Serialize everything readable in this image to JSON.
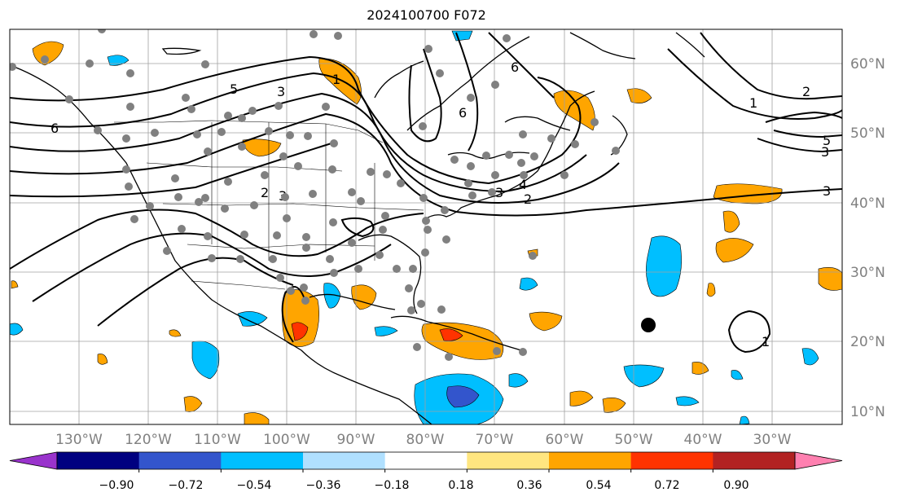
{
  "title": "2024100700 F072",
  "map": {
    "latitude_labels": [
      "60°N",
      "50°N",
      "40°N",
      "30°N",
      "20°N",
      "10°N"
    ],
    "longitude_labels": [
      "130°W",
      "120°W",
      "110°W",
      "100°W",
      "90°W",
      "80°W",
      "70°W",
      "60°W",
      "50°W",
      "40°W",
      "30°W"
    ],
    "contour_labels": [
      "1",
      "2",
      "3",
      "4",
      "5",
      "6"
    ],
    "marker": "storm-center-dot",
    "grid": true
  },
  "colorbar": {
    "ticks": [
      "−0.90",
      "−0.72",
      "−0.54",
      "−0.36",
      "−0.18",
      "0.18",
      "0.36",
      "0.54",
      "0.72",
      "0.90"
    ],
    "colors": [
      "#9933cc",
      "#000080",
      "#3355cc",
      "#00bfff",
      "#b0e0ff",
      "#ffffff",
      "#ffe680",
      "#ffa500",
      "#ff3300",
      "#b22222",
      "#ff80b0"
    ],
    "extend": "both"
  }
}
